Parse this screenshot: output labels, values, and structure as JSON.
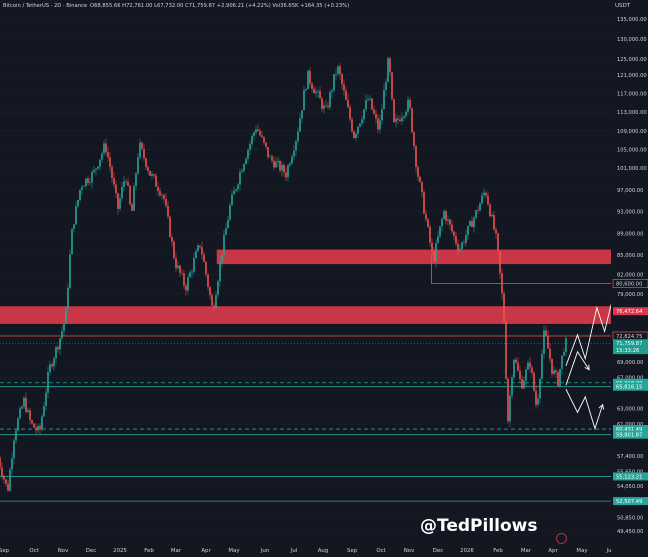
{
  "header": {
    "symbol": "Bitcoin / TetherUS · 2D · Binance",
    "ohlc": {
      "o_label": "O",
      "o": "68,855.66",
      "h_label": "H",
      "h": "72,761.00",
      "l_label": "L",
      "l": "67,732.00",
      "c_label": "C",
      "c": "71,759.87",
      "change": "+2,906.21 (+4.22%)",
      "vol_label": "Vol",
      "vol": "36.65K",
      "vol_change": "+164.35 (+0.23%)"
    },
    "currency": "USDT"
  },
  "watermark": "@TedPillows",
  "colors": {
    "background": "#131722",
    "up": "#26a69a",
    "down": "#ef5350",
    "zone": "#d9394a",
    "support": "#26a69a",
    "resistance": "#ef5350",
    "text": "#d1d4dc"
  },
  "chart_data": {
    "type": "candlestick",
    "title": "",
    "x_ticks": [
      "Sep",
      "Oct",
      "Nov",
      "Dec",
      "2025",
      "Feb",
      "Mar",
      "Apr",
      "May",
      "Jun",
      "Jul",
      "Aug",
      "Sep",
      "Oct",
      "Nov",
      "Dec",
      "2026",
      "Feb",
      "Mar",
      "Apr",
      "May",
      "Ju"
    ],
    "y_ticks": [
      "135,000.00",
      "130,000.00",
      "125,000.00",
      "121,000.00",
      "117,000.00",
      "113,000.00",
      "109,000.00",
      "105,000.00",
      "101,000.00",
      "97,000.00",
      "93,000.00",
      "89,000.00",
      "85,000.00",
      "82,000.00",
      "79,000.00",
      "73,000.00",
      "69,000.00",
      "67,000.00",
      "63,000.00",
      "61,000.00",
      "57,400.00",
      "55,650.00",
      "54,050.00",
      "50,850.00",
      "49,450.00"
    ],
    "y_tick_values": [
      135000,
      130000,
      125000,
      121000,
      117000,
      113000,
      109000,
      105000,
      101000,
      97000,
      93000,
      89000,
      85000,
      82000,
      79000,
      73000,
      69000,
      67000,
      63000,
      61000,
      57400,
      55650,
      54050,
      50850,
      49450
    ],
    "price_labels": [
      {
        "text": "80,600.00",
        "value": 80600,
        "kind": "resistance"
      },
      {
        "text": "76,472.64",
        "value": 76472.64,
        "kind": "zone"
      },
      {
        "text": "72,824.75",
        "value": 72824.75,
        "kind": "resistance"
      },
      {
        "text": "71,759.87",
        "value": 71759.87,
        "kind": "current"
      },
      {
        "text": "15:33:26",
        "value": 70750,
        "kind": "current"
      },
      {
        "text": "66,318.70",
        "value": 66318.7,
        "kind": "support"
      },
      {
        "text": "65,816.15",
        "value": 65816.15,
        "kind": "support"
      },
      {
        "text": "60,431.49",
        "value": 60431.49,
        "kind": "support"
      },
      {
        "text": "59,801.87",
        "value": 59801.87,
        "kind": "support"
      },
      {
        "text": "55,123.21",
        "value": 55123.21,
        "kind": "support"
      },
      {
        "text": "52,507.49",
        "value": 52507.49,
        "kind": "support"
      }
    ],
    "zones": [
      {
        "from": 83600,
        "to": 86000
      },
      {
        "from": 74600,
        "to": 77200
      }
    ],
    "support_lines": [
      66318.7,
      65816.15,
      60431.49,
      59801.87,
      55123.21,
      52507.49
    ],
    "resistance_lines": [
      80600,
      72824.75
    ],
    "price_path": [
      {
        "t": "2024-08-26",
        "p": 58000
      },
      {
        "t": "2024-09-07",
        "p": 53500
      },
      {
        "t": "2024-09-14",
        "p": 60000
      },
      {
        "t": "2024-09-24",
        "p": 64000
      },
      {
        "t": "2024-10-01",
        "p": 61000
      },
      {
        "t": "2024-10-10",
        "p": 60000
      },
      {
        "t": "2024-10-20",
        "p": 68000
      },
      {
        "t": "2024-10-30",
        "p": 72000
      },
      {
        "t": "2024-11-06",
        "p": 75500
      },
      {
        "t": "2024-11-13",
        "p": 90000
      },
      {
        "t": "2024-11-22",
        "p": 98000
      },
      {
        "t": "2024-12-05",
        "p": 100000
      },
      {
        "t": "2024-12-17",
        "p": 106000
      },
      {
        "t": "2024-12-30",
        "p": 93500
      },
      {
        "t": "2025-01-07",
        "p": 100000
      },
      {
        "t": "2025-01-13",
        "p": 92000
      },
      {
        "t": "2025-01-21",
        "p": 106000
      },
      {
        "t": "2025-02-01",
        "p": 100000
      },
      {
        "t": "2025-02-15",
        "p": 96000
      },
      {
        "t": "2025-02-27",
        "p": 84000
      },
      {
        "t": "2025-03-10",
        "p": 80000
      },
      {
        "t": "2025-03-25",
        "p": 87000
      },
      {
        "t": "2025-04-07",
        "p": 76500
      },
      {
        "t": "2025-04-15",
        "p": 84000
      },
      {
        "t": "2025-04-25",
        "p": 94000
      },
      {
        "t": "2025-05-10",
        "p": 103000
      },
      {
        "t": "2025-05-22",
        "p": 110000
      },
      {
        "t": "2025-06-05",
        "p": 103000
      },
      {
        "t": "2025-06-22",
        "p": 100000
      },
      {
        "t": "2025-07-03",
        "p": 108000
      },
      {
        "t": "2025-07-14",
        "p": 121000
      },
      {
        "t": "2025-08-02",
        "p": 113000
      },
      {
        "t": "2025-08-14",
        "p": 123000
      },
      {
        "t": "2025-08-31",
        "p": 108000
      },
      {
        "t": "2025-09-15",
        "p": 116000
      },
      {
        "t": "2025-09-26",
        "p": 109000
      },
      {
        "t": "2025-10-06",
        "p": 125000
      },
      {
        "t": "2025-10-11",
        "p": 110000
      },
      {
        "t": "2025-10-27",
        "p": 115000
      },
      {
        "t": "2025-11-04",
        "p": 101000
      },
      {
        "t": "2025-11-21",
        "p": 84000
      },
      {
        "t": "2025-12-02",
        "p": 93000
      },
      {
        "t": "2025-12-18",
        "p": 86000
      },
      {
        "t": "2026-01-05",
        "p": 93000
      },
      {
        "t": "2026-01-14",
        "p": 97000
      },
      {
        "t": "2026-01-25",
        "p": 88000
      },
      {
        "t": "2026-02-02",
        "p": 76000
      },
      {
        "t": "2026-02-06",
        "p": 61000
      },
      {
        "t": "2026-02-12",
        "p": 70000
      },
      {
        "t": "2026-02-20",
        "p": 66000
      },
      {
        "t": "2026-03-01",
        "p": 69000
      },
      {
        "t": "2026-03-08",
        "p": 63000
      },
      {
        "t": "2026-03-16",
        "p": 73500
      },
      {
        "t": "2026-03-24",
        "p": 68000
      },
      {
        "t": "2026-03-30",
        "p": 66500
      },
      {
        "t": "2026-04-06",
        "p": 71760
      }
    ],
    "projection_up": [
      {
        "t": "2026-04-06",
        "p": 68500
      },
      {
        "t": "2026-04-18",
        "p": 73000
      },
      {
        "t": "2026-04-26",
        "p": 69500
      },
      {
        "t": "2026-05-08",
        "p": 77000
      },
      {
        "t": "2026-05-16",
        "p": 73500
      },
      {
        "t": "2026-05-28",
        "p": 80600
      }
    ],
    "projection_down": [
      {
        "t": "2026-04-06",
        "p": 66000
      },
      {
        "t": "2026-04-18",
        "p": 70500
      },
      {
        "t": "2026-04-30",
        "p": 68000
      }
    ],
    "projection_down2": [
      {
        "t": "2026-04-06",
        "p": 65500
      },
      {
        "t": "2026-04-18",
        "p": 62500
      },
      {
        "t": "2026-04-26",
        "p": 64500
      },
      {
        "t": "2026-05-06",
        "p": 60500
      },
      {
        "t": "2026-05-14",
        "p": 63500
      }
    ]
  }
}
